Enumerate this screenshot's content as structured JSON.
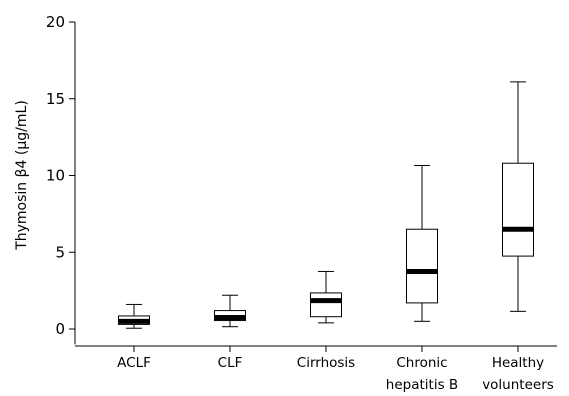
{
  "chart_data": {
    "type": "boxplot",
    "ylabel": "Thymosin β4 (μg/mL)",
    "ylim": [
      -1,
      20
    ],
    "yticks": [
      0,
      5,
      10,
      15,
      20
    ],
    "grid": false,
    "categories": [
      {
        "lines": [
          "ACLF"
        ]
      },
      {
        "lines": [
          "CLF"
        ]
      },
      {
        "lines": [
          "Cirrhosis"
        ]
      },
      {
        "lines": [
          "Chronic",
          "hepatitis B"
        ]
      },
      {
        "lines": [
          "Healthy",
          "volunteers"
        ]
      }
    ],
    "boxes": [
      {
        "min": 0.05,
        "q1": 0.3,
        "median": 0.5,
        "q3": 0.85,
        "max": 1.6
      },
      {
        "min": 0.15,
        "q1": 0.55,
        "median": 0.75,
        "q3": 1.2,
        "max": 2.2
      },
      {
        "min": 0.4,
        "q1": 0.8,
        "median": 1.85,
        "q3": 2.35,
        "max": 3.75
      },
      {
        "min": 0.5,
        "q1": 1.7,
        "median": 3.75,
        "q3": 6.5,
        "max": 10.65
      },
      {
        "min": 1.15,
        "q1": 4.75,
        "median": 6.5,
        "q3": 10.8,
        "max": 16.1
      }
    ]
  }
}
